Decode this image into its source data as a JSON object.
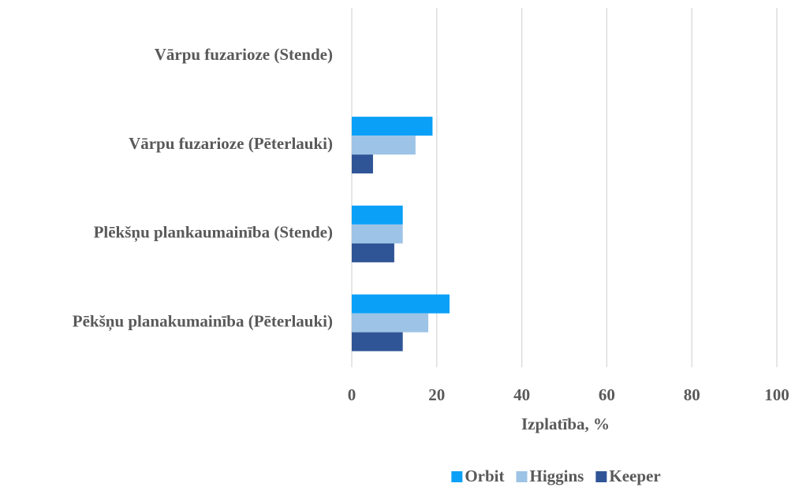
{
  "chart_data": {
    "type": "barh",
    "categories": [
      "Vārpu fuzarioze (Stende)",
      "Vārpu fuzarioze (Pēterlauki)",
      "Plēkšņu plankaumainība (Stende)",
      "Pēkšņu planakumainība (Pēterlauki)"
    ],
    "series": [
      {
        "name": "Orbit",
        "color": "#0ba0f7",
        "values": [
          0,
          19,
          12,
          23
        ]
      },
      {
        "name": "Higgins",
        "color": "#9dc3e6",
        "values": [
          0,
          15,
          12,
          18
        ]
      },
      {
        "name": "Keeper",
        "color": "#2f5597",
        "values": [
          0,
          5,
          10,
          12
        ]
      }
    ],
    "x_label": "Izplatība, %",
    "xlim": [
      0,
      100
    ],
    "xticks": [
      0,
      20,
      40,
      60,
      80,
      100
    ],
    "grid": true,
    "legend": "bottom"
  }
}
